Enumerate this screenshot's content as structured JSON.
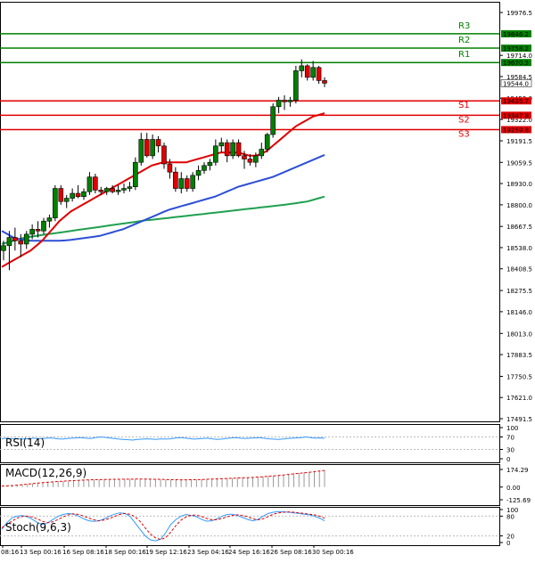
{
  "chart_data": {
    "type": "candlestick",
    "instrument": "",
    "main_panel": {
      "price_axis_ticks": [
        "19976.5",
        "19714.0",
        "19584.5",
        "19452.0",
        "19322.0",
        "19191.5",
        "19059.5",
        "18930.0",
        "18800.0",
        "18667.5",
        "18538.0",
        "18408.5",
        "18275.5",
        "18146.0",
        "18013.0",
        "17883.5",
        "17750.5",
        "17621.0",
        "17491.5"
      ],
      "current_price": "19544.0",
      "resistance": [
        {
          "name": "R1",
          "value": "19670.3",
          "color": "#008000"
        },
        {
          "name": "R2",
          "value": "19758.2",
          "color": "#008000"
        },
        {
          "name": "R3",
          "value": "19846.2",
          "color": "#008000"
        }
      ],
      "support": [
        {
          "name": "S1",
          "value": "19435.7",
          "color": "#e00000"
        },
        {
          "name": "S2",
          "value": "19347.8",
          "color": "#e00000"
        },
        {
          "name": "S3",
          "value": "19259.8",
          "color": "#e00000"
        }
      ],
      "candles": [
        {
          "o": 18520,
          "h": 18580,
          "l": 18460,
          "c": 18550
        },
        {
          "o": 18550,
          "h": 18640,
          "l": 18400,
          "c": 18600
        },
        {
          "o": 18600,
          "h": 18660,
          "l": 18520,
          "c": 18580
        },
        {
          "o": 18580,
          "h": 18620,
          "l": 18480,
          "c": 18560
        },
        {
          "o": 18560,
          "h": 18640,
          "l": 18530,
          "c": 18620
        },
        {
          "o": 18620,
          "h": 18680,
          "l": 18590,
          "c": 18650
        },
        {
          "o": 18650,
          "h": 18700,
          "l": 18600,
          "c": 18640
        },
        {
          "o": 18640,
          "h": 18720,
          "l": 18620,
          "c": 18700
        },
        {
          "o": 18700,
          "h": 18740,
          "l": 18660,
          "c": 18720
        },
        {
          "o": 18720,
          "h": 18920,
          "l": 18700,
          "c": 18900
        },
        {
          "o": 18900,
          "h": 18920,
          "l": 18800,
          "c": 18820
        },
        {
          "o": 18820,
          "h": 18860,
          "l": 18780,
          "c": 18840
        },
        {
          "o": 18840,
          "h": 18900,
          "l": 18820,
          "c": 18870
        },
        {
          "o": 18870,
          "h": 18920,
          "l": 18840,
          "c": 18850
        },
        {
          "o": 18850,
          "h": 18900,
          "l": 18830,
          "c": 18880
        },
        {
          "o": 18880,
          "h": 19000,
          "l": 18860,
          "c": 18970
        },
        {
          "o": 18970,
          "h": 18990,
          "l": 18870,
          "c": 18890
        },
        {
          "o": 18890,
          "h": 18910,
          "l": 18860,
          "c": 18880
        },
        {
          "o": 18880,
          "h": 18910,
          "l": 18860,
          "c": 18900
        },
        {
          "o": 18900,
          "h": 18920,
          "l": 18870,
          "c": 18880
        },
        {
          "o": 18880,
          "h": 18920,
          "l": 18860,
          "c": 18890
        },
        {
          "o": 18890,
          "h": 18930,
          "l": 18870,
          "c": 18900
        },
        {
          "o": 18900,
          "h": 18940,
          "l": 18880,
          "c": 18910
        },
        {
          "o": 18910,
          "h": 19090,
          "l": 18890,
          "c": 19060
        },
        {
          "o": 19060,
          "h": 19240,
          "l": 19040,
          "c": 19200
        },
        {
          "o": 19200,
          "h": 19240,
          "l": 19090,
          "c": 19100
        },
        {
          "o": 19100,
          "h": 19230,
          "l": 19080,
          "c": 19200
        },
        {
          "o": 19200,
          "h": 19220,
          "l": 19120,
          "c": 19160
        },
        {
          "o": 19160,
          "h": 19180,
          "l": 19020,
          "c": 19050
        },
        {
          "o": 19050,
          "h": 19080,
          "l": 18960,
          "c": 19000
        },
        {
          "o": 19000,
          "h": 19030,
          "l": 18880,
          "c": 18900
        },
        {
          "o": 18900,
          "h": 19000,
          "l": 18870,
          "c": 18960
        },
        {
          "o": 18960,
          "h": 18980,
          "l": 18880,
          "c": 18900
        },
        {
          "o": 18900,
          "h": 19000,
          "l": 18880,
          "c": 18980
        },
        {
          "o": 18980,
          "h": 19040,
          "l": 18950,
          "c": 19010
        },
        {
          "o": 19010,
          "h": 19060,
          "l": 18990,
          "c": 19040
        },
        {
          "o": 19040,
          "h": 19080,
          "l": 19010,
          "c": 19060
        },
        {
          "o": 19060,
          "h": 19200,
          "l": 19040,
          "c": 19160
        },
        {
          "o": 19160,
          "h": 19210,
          "l": 19120,
          "c": 19180
        },
        {
          "o": 19180,
          "h": 19200,
          "l": 19060,
          "c": 19100
        },
        {
          "o": 19100,
          "h": 19200,
          "l": 19080,
          "c": 19180
        },
        {
          "o": 19180,
          "h": 19200,
          "l": 19090,
          "c": 19100
        },
        {
          "o": 19100,
          "h": 19130,
          "l": 19020,
          "c": 19080
        },
        {
          "o": 19080,
          "h": 19110,
          "l": 19040,
          "c": 19060
        },
        {
          "o": 19060,
          "h": 19120,
          "l": 19030,
          "c": 19100
        },
        {
          "o": 19100,
          "h": 19180,
          "l": 19080,
          "c": 19140
        },
        {
          "o": 19140,
          "h": 19240,
          "l": 19120,
          "c": 19230
        },
        {
          "o": 19230,
          "h": 19420,
          "l": 19210,
          "c": 19400
        },
        {
          "o": 19400,
          "h": 19460,
          "l": 19360,
          "c": 19440
        },
        {
          "o": 19440,
          "h": 19470,
          "l": 19380,
          "c": 19430
        },
        {
          "o": 19430,
          "h": 19460,
          "l": 19400,
          "c": 19440
        },
        {
          "o": 19440,
          "h": 19650,
          "l": 19420,
          "c": 19620
        },
        {
          "o": 19620,
          "h": 19690,
          "l": 19580,
          "c": 19650
        },
        {
          "o": 19650,
          "h": 19660,
          "l": 19560,
          "c": 19580
        },
        {
          "o": 19580,
          "h": 19680,
          "l": 19560,
          "c": 19640
        },
        {
          "o": 19640,
          "h": 19650,
          "l": 19540,
          "c": 19560
        },
        {
          "o": 19560,
          "h": 19580,
          "l": 19520,
          "c": 19544
        }
      ],
      "ma_red": [
        18420,
        18440,
        18460,
        18480,
        18500,
        18520,
        18550,
        18580,
        18620,
        18660,
        18700,
        18730,
        18760,
        18780,
        18800,
        18820,
        18840,
        18860,
        18880,
        18900,
        18920,
        18940,
        18960,
        18980,
        19000,
        19020,
        19040,
        19050,
        19060,
        19060,
        19060,
        19060,
        19060,
        19070,
        19080,
        19090,
        19100,
        19110,
        19120,
        19120,
        19120,
        19120,
        19110,
        19100,
        19100,
        19110,
        19130,
        19160,
        19190,
        19220,
        19250,
        19280,
        19300,
        19320,
        19340,
        19350,
        19360
      ],
      "ma_blue": [
        18640,
        18620,
        18600,
        18590,
        18585,
        18580,
        18580,
        18580,
        18580,
        18580,
        18580,
        18582,
        18585,
        18590,
        18595,
        18600,
        18605,
        18610,
        18620,
        18630,
        18640,
        18650,
        18665,
        18680,
        18695,
        18710,
        18725,
        18740,
        18755,
        18770,
        18780,
        18790,
        18800,
        18810,
        18820,
        18830,
        18840,
        18850,
        18865,
        18880,
        18895,
        18910,
        18920,
        18930,
        18940,
        18950,
        18960,
        18970,
        18985,
        19000,
        19015,
        19030,
        19045,
        19060,
        19075,
        19090,
        19105
      ],
      "ma_green": [
        18560,
        18570,
        18580,
        18590,
        18600,
        18605,
        18610,
        18615,
        18620,
        18625,
        18630,
        18635,
        18640,
        18645,
        18650,
        18655,
        18660,
        18665,
        18670,
        18675,
        18680,
        18685,
        18690,
        18695,
        18700,
        18705,
        18708,
        18712,
        18716,
        18720,
        18724,
        18728,
        18732,
        18736,
        18740,
        18744,
        18748,
        18752,
        18756,
        18760,
        18764,
        18768,
        18772,
        18776,
        18780,
        18784,
        18788,
        18792,
        18796,
        18800,
        18805,
        18810,
        18815,
        18820,
        18830,
        18840,
        18850
      ]
    },
    "rsi_panel": {
      "title": "RSI(14)",
      "axis_ticks": [
        "100",
        "70",
        "30",
        "0"
      ],
      "values": [
        64,
        66,
        64,
        65,
        63,
        64,
        65,
        66,
        64,
        65,
        67,
        66,
        64,
        63,
        65,
        66,
        67,
        68,
        66,
        65,
        68,
        70,
        69,
        67,
        65,
        63,
        62,
        61,
        60,
        62,
        63,
        64,
        63,
        62,
        64,
        63,
        64,
        66,
        68,
        67,
        65,
        63,
        64,
        65,
        66,
        64,
        62,
        63,
        65,
        67,
        68,
        66,
        65,
        66,
        67,
        68,
        66,
        64,
        63,
        62,
        63,
        65,
        66,
        67,
        68,
        70,
        68,
        66,
        67,
        66
      ]
    },
    "macd_panel": {
      "title": "MACD(12,26,9)",
      "axis_ticks": [
        "174.29",
        "0.00",
        "-125.69"
      ],
      "histogram": [
        5,
        10,
        15,
        20,
        25,
        30,
        35,
        40,
        45,
        50,
        55,
        58,
        60,
        62,
        65,
        68,
        70,
        72,
        74,
        75,
        76,
        77,
        78,
        78,
        79,
        80,
        80,
        80,
        79,
        78,
        77,
        75,
        74,
        73,
        72,
        72,
        73,
        74,
        76,
        78,
        80,
        82,
        84,
        86,
        88,
        90,
        92,
        94,
        96,
        98,
        100,
        104,
        108,
        112,
        118,
        124,
        130,
        135,
        140,
        145,
        150,
        155,
        160,
        165
      ],
      "signal": [
        10,
        12,
        15,
        19,
        24,
        29,
        34,
        39,
        44,
        48,
        52,
        55,
        58,
        61,
        64,
        67,
        69,
        71,
        73,
        74,
        75,
        76,
        77,
        77,
        78,
        78,
        79,
        79,
        79,
        78,
        77,
        76,
        75,
        74,
        73,
        72,
        72,
        73,
        74,
        75,
        77,
        79,
        81,
        83,
        85,
        87,
        89,
        91,
        93,
        96,
        99,
        102,
        106,
        110,
        115,
        120,
        126,
        131,
        136,
        141,
        146,
        152,
        158,
        165
      ]
    },
    "stoch_panel": {
      "title": "Stoch(9,6,3)",
      "axis_ticks": [
        "100",
        "80",
        "20",
        "0"
      ],
      "main": [
        40,
        60,
        75,
        80,
        82,
        78,
        70,
        60,
        55,
        60,
        70,
        80,
        85,
        88,
        86,
        80,
        72,
        66,
        64,
        66,
        72,
        80,
        86,
        90,
        88,
        80,
        60,
        40,
        20,
        8,
        5,
        10,
        30,
        55,
        70,
        80,
        85,
        82,
        78,
        70,
        65,
        66,
        72,
        80,
        85,
        86,
        82,
        76,
        70,
        66,
        70,
        80,
        88,
        92,
        94,
        93,
        92,
        90,
        88,
        86,
        84,
        80,
        74,
        66
      ],
      "signal": [
        45,
        55,
        65,
        74,
        79,
        80,
        77,
        71,
        64,
        60,
        63,
        70,
        78,
        84,
        87,
        85,
        80,
        74,
        69,
        66,
        68,
        73,
        79,
        85,
        88,
        86,
        78,
        64,
        44,
        26,
        14,
        9,
        15,
        32,
        52,
        68,
        78,
        83,
        83,
        79,
        73,
        69,
        69,
        73,
        78,
        82,
        84,
        82,
        78,
        72,
        69,
        72,
        79,
        86,
        90,
        92,
        93,
        92,
        90,
        88,
        86,
        84,
        80,
        74
      ]
    },
    "time_axis_ticks": [
      "08:16",
      "13 Sep 00:16",
      "16 Sep 08:16",
      "18 Sep 00:16",
      "19 Sep 12:16",
      "23 Sep 04:16",
      "24 Sep 16:16",
      "26 Sep 08:16",
      "30 Sep 00:16"
    ],
    "colors": {
      "bull_candle": "#008000",
      "bear_candle": "#e00000",
      "ma_red": "#e00000",
      "ma_blue": "#2d4fd6",
      "ma_green": "#20a050",
      "rsi_line": "#3399ff",
      "macd_hist": "#999999",
      "macd_signal": "#e00000",
      "stoch_main": "#3399ff",
      "stoch_signal": "#e00000",
      "label_bg_green": "#008000",
      "label_bg_red": "#e00000"
    }
  }
}
